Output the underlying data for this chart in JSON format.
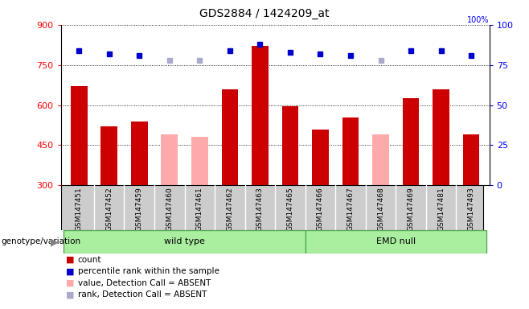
{
  "title": "GDS2884 / 1424209_at",
  "samples": [
    "GSM147451",
    "GSM147452",
    "GSM147459",
    "GSM147460",
    "GSM147461",
    "GSM147462",
    "GSM147463",
    "GSM147465",
    "GSM147466",
    "GSM147467",
    "GSM147468",
    "GSM147469",
    "GSM147481",
    "GSM147493"
  ],
  "counts": [
    670,
    520,
    540,
    490,
    480,
    660,
    820,
    595,
    510,
    555,
    490,
    625,
    660,
    490
  ],
  "absent_detection": [
    false,
    false,
    false,
    true,
    true,
    false,
    false,
    false,
    false,
    false,
    true,
    false,
    false,
    false
  ],
  "percentile_ranks": [
    84,
    82,
    81,
    78,
    78,
    84,
    88,
    83,
    82,
    81,
    78,
    84,
    84,
    81
  ],
  "absent_ranks": [
    false,
    false,
    false,
    true,
    true,
    false,
    false,
    false,
    false,
    false,
    true,
    false,
    false,
    false
  ],
  "groups": {
    "wild type": [
      0,
      1,
      2,
      3,
      4,
      5,
      6,
      7
    ],
    "EMD null": [
      8,
      9,
      10,
      11,
      12,
      13
    ]
  },
  "ylim_left": [
    300,
    900
  ],
  "ylim_right": [
    0,
    100
  ],
  "yticks_left": [
    300,
    450,
    600,
    750,
    900
  ],
  "yticks_right": [
    0,
    25,
    50,
    75,
    100
  ],
  "bar_color_normal": "#cc0000",
  "bar_color_absent": "#ffaaaa",
  "dot_color_normal": "#0000cc",
  "dot_color_absent": "#aaaacc",
  "group_color": "#aaeea0",
  "group_border": "#55aa55",
  "bg_color": "#cccccc",
  "cell_bg": "#dddddd",
  "legend_items": [
    {
      "label": "count",
      "color": "#cc0000"
    },
    {
      "label": "percentile rank within the sample",
      "color": "#0000cc"
    },
    {
      "label": "value, Detection Call = ABSENT",
      "color": "#ffaaaa"
    },
    {
      "label": "rank, Detection Call = ABSENT",
      "color": "#aaaacc"
    }
  ]
}
